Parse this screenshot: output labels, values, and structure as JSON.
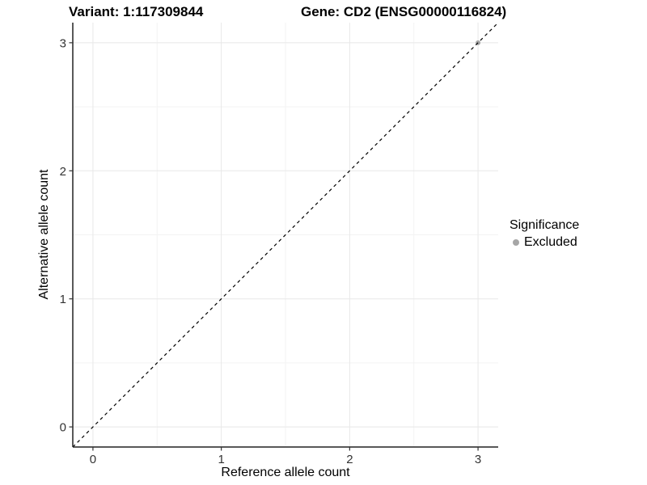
{
  "chart_data": {
    "type": "scatter",
    "title_left": "Variant: 1:117309844",
    "title_right": "Gene: CD2 (ENSG00000116824)",
    "xlabel": "Reference allele count",
    "ylabel": "Alternative allele count",
    "xlim": [
      -0.157,
      3.157
    ],
    "ylim": [
      -0.157,
      3.157
    ],
    "x_ticks": [
      0,
      1,
      2,
      3
    ],
    "y_ticks": [
      0,
      1,
      2,
      3
    ],
    "x_minor": [
      0.5,
      1.5,
      2.5
    ],
    "y_minor": [
      0.5,
      1.5,
      2.5
    ],
    "grid": true,
    "series": [
      {
        "name": "Excluded",
        "color": "#a6a6a6",
        "points": [
          [
            3,
            3
          ]
        ]
      }
    ],
    "identity_line": {
      "style": "dashed",
      "color": "#000000",
      "from": -0.157,
      "to": 3.157
    },
    "legend": {
      "title": "Significance",
      "position": "right",
      "entries": [
        {
          "label": "Excluded",
          "color": "#a6a6a6"
        }
      ]
    },
    "colors": {
      "grid_major": "#e8e8e8",
      "grid_minor": "#f3f3f3",
      "axis_line": "#222222",
      "tick": "#333333",
      "tick_label": "#333333"
    }
  }
}
